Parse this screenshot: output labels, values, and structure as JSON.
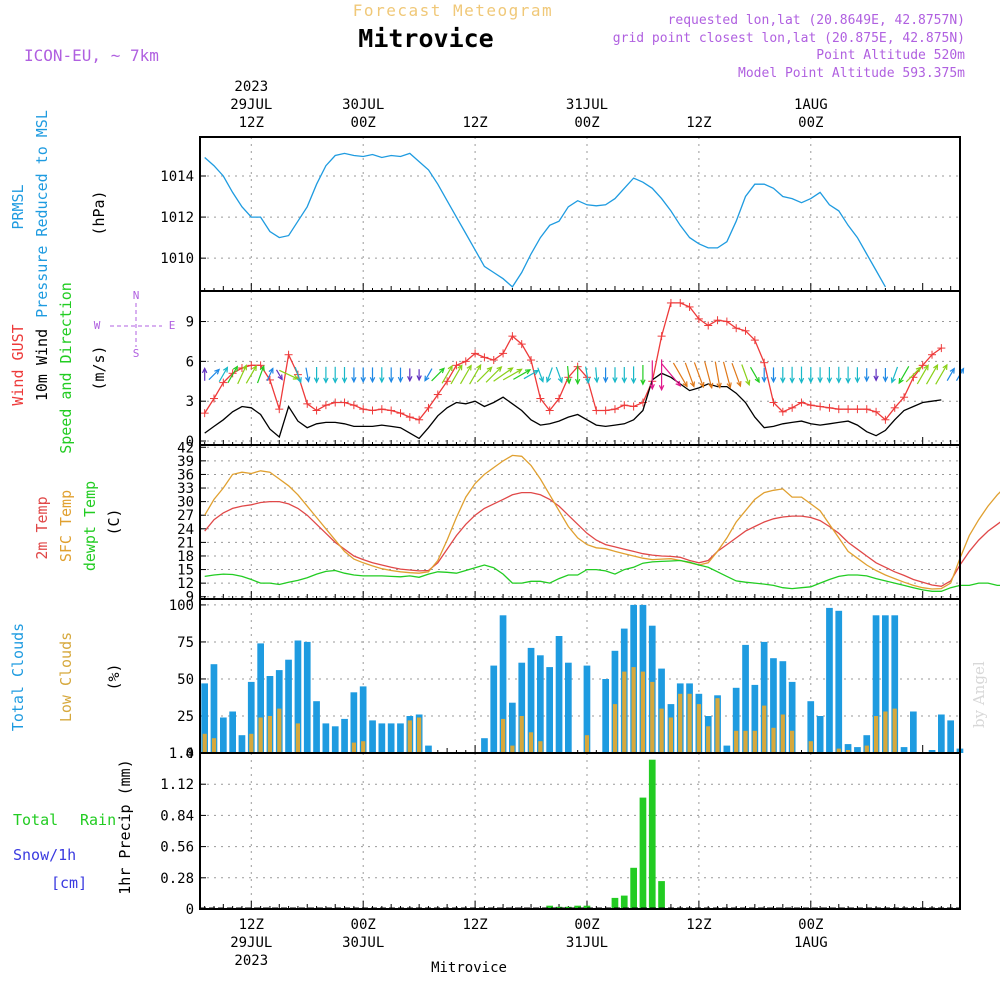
{
  "header": {
    "top_title": "Forecast Meteogram",
    "location": "Mitrovice",
    "model": "ICON-EU, ~ 7km",
    "requested": "requested lon,lat (20.8649E, 42.8757N)",
    "grid_point": "grid point closest lon,lat (20.875E, 42.875N)",
    "point_altitude": "Point Altitude 520m",
    "model_altitude": "Model Point Altitude 593.375m",
    "credit": "by Angel",
    "bottom_location": "Mitrovice"
  },
  "colors": {
    "pressure": "#1e9be0",
    "gust": "#ee3a3a",
    "wind": "#000000",
    "temp": "#e04848",
    "sfc": "#e0a030",
    "dewpt": "#22cc22",
    "total_cloud": "#1e9be0",
    "low_cloud": "#d6a83c",
    "rain": "#22cc22",
    "snow": "#3a3ae0",
    "meta": "#b060e0",
    "title_faded": "#f0c878"
  },
  "time_axis": {
    "top": [
      {
        "t": 12,
        "lines": [
          "2023",
          "29JUL",
          "12Z"
        ]
      },
      {
        "t": 24,
        "lines": [
          "30JUL",
          "00Z"
        ]
      },
      {
        "t": 36,
        "lines": [
          "12Z"
        ]
      },
      {
        "t": 48,
        "lines": [
          "31JUL",
          "00Z"
        ]
      },
      {
        "t": 60,
        "lines": [
          "12Z"
        ]
      },
      {
        "t": 72,
        "lines": [
          "1AUG",
          "00Z"
        ]
      }
    ],
    "bottom": [
      {
        "t": 12,
        "lines": [
          "12Z",
          "29JUL",
          "2023"
        ]
      },
      {
        "t": 24,
        "lines": [
          "00Z",
          "30JUL"
        ]
      },
      {
        "t": 36,
        "lines": [
          "12Z"
        ]
      },
      {
        "t": 48,
        "lines": [
          "00Z",
          "31JUL"
        ]
      },
      {
        "t": 60,
        "lines": [
          "12Z"
        ]
      },
      {
        "t": 72,
        "lines": [
          "00Z",
          "1AUG"
        ]
      }
    ]
  },
  "panels": {
    "pressure": {
      "labels": [
        "PRMSL",
        "Pressure Reduced to MSL"
      ],
      "unit": "(hPa)"
    },
    "wind": {
      "labels": [
        "Wind GUST",
        "10m Wind",
        "Speed and Direction"
      ],
      "unit": "(m/s)",
      "compass": {
        "n": "N",
        "s": "S",
        "w": "W",
        "e": "E"
      }
    },
    "temp": {
      "labels": [
        "2m Temp",
        "SFC Temp",
        "dewpt Temp"
      ],
      "unit": "(C)"
    },
    "cloud": {
      "labels": [
        "Total Clouds",
        "Low Clouds"
      ],
      "unit": "(%)"
    },
    "precip": {
      "labels": [
        "Total",
        "Rain",
        "Snow/1h",
        "[cm]"
      ],
      "unit": "1hr Precip (mm)"
    }
  },
  "chart_data": [
    {
      "type": "line",
      "name": "pressure",
      "t_start": 7,
      "t_step": 1,
      "ylim": [
        1008.4,
        1015.9
      ],
      "yticks": [
        1010,
        1012,
        1014
      ],
      "series": [
        {
          "name": "PRMSL",
          "values": [
            1014.9,
            1014.5,
            1014.0,
            1013.2,
            1012.5,
            1012.0,
            1012.0,
            1011.3,
            1011.0,
            1011.1,
            1011.8,
            1012.5,
            1013.6,
            1014.5,
            1015.0,
            1015.1,
            1015.0,
            1014.95,
            1015.05,
            1014.9,
            1015.0,
            1014.95,
            1015.1,
            1014.7,
            1014.3,
            1013.6,
            1012.8,
            1012.0,
            1011.2,
            1010.4,
            1009.6,
            1009.3,
            1009.0,
            1008.6,
            1009.3,
            1010.2,
            1011.0,
            1011.6,
            1011.8,
            1012.5,
            1012.8,
            1012.6,
            1012.55,
            1012.6,
            1012.9,
            1013.4,
            1013.9,
            1013.7,
            1013.4,
            1012.9,
            1012.3,
            1011.6,
            1011.0,
            1010.7,
            1010.5,
            1010.5,
            1010.8,
            1011.8,
            1013.0,
            1013.6,
            1013.6,
            1013.4,
            1013.0,
            1012.9,
            1012.7,
            1012.9,
            1013.2,
            1012.6,
            1012.3,
            1011.6,
            1011.0,
            1010.2,
            1009.4,
            1008.6
          ]
        }
      ]
    },
    {
      "type": "line",
      "name": "wind",
      "t_start": 7,
      "t_step": 1,
      "ylim": [
        -0.3,
        11.3
      ],
      "yticks": [
        0,
        3,
        6,
        9
      ],
      "series": [
        {
          "name": "Wind GUST",
          "values": [
            2.1,
            3.2,
            4.4,
            5.1,
            5.5,
            5.7,
            5.7,
            4.6,
            2.4,
            6.5,
            5.0,
            2.8,
            2.3,
            2.7,
            2.9,
            2.9,
            2.7,
            2.4,
            2.3,
            2.4,
            2.3,
            2.1,
            1.8,
            1.6,
            2.5,
            3.5,
            4.5,
            5.7,
            6.0,
            6.6,
            6.3,
            6.1,
            6.6,
            7.9,
            7.3,
            6.1,
            3.2,
            2.3,
            3.2,
            4.8,
            5.6,
            4.8,
            2.3,
            2.3,
            2.4,
            2.7,
            2.6,
            2.9,
            4.5,
            7.9,
            10.4,
            10.4,
            10.1,
            9.2,
            8.7,
            9.1,
            9.0,
            8.5,
            8.3,
            7.6,
            5.9,
            2.9,
            2.2,
            2.5,
            2.9,
            2.7,
            2.6,
            2.5,
            2.4,
            2.4,
            2.4,
            2.4,
            2.2,
            1.6,
            2.5,
            3.3,
            4.8,
            5.7,
            6.5,
            7.0
          ]
        },
        {
          "name": "10m Wind",
          "values": [
            0.6,
            1.1,
            1.6,
            2.2,
            2.6,
            2.5,
            2.0,
            0.9,
            0.3,
            2.6,
            1.5,
            1.0,
            1.3,
            1.4,
            1.4,
            1.3,
            1.1,
            1.1,
            1.1,
            1.2,
            1.1,
            1.0,
            0.6,
            0.2,
            1.0,
            1.9,
            2.5,
            2.9,
            2.8,
            3.0,
            2.6,
            2.9,
            3.3,
            2.8,
            2.3,
            1.6,
            1.2,
            1.3,
            1.5,
            1.8,
            2.0,
            1.6,
            1.2,
            1.1,
            1.2,
            1.3,
            1.6,
            2.3,
            4.6,
            5.1,
            4.8,
            4.3,
            3.8,
            4.0,
            4.3,
            4.1,
            4.1,
            3.6,
            2.9,
            1.8,
            1.0,
            1.1,
            1.3,
            1.4,
            1.5,
            1.3,
            1.2,
            1.3,
            1.4,
            1.5,
            1.2,
            0.7,
            0.4,
            0.8,
            1.6,
            2.3,
            2.6,
            2.9,
            3.0,
            3.1
          ]
        }
      ]
    },
    {
      "type": "line",
      "name": "temperature",
      "t_start": 7,
      "t_step": 1,
      "ylim": [
        8.5,
        42.5
      ],
      "yticks": [
        9,
        12,
        15,
        18,
        21,
        24,
        27,
        30,
        33,
        36,
        39,
        42
      ],
      "series": [
        {
          "name": "2m Temp",
          "values": [
            23.5,
            26.0,
            27.5,
            28.5,
            29.0,
            29.3,
            29.8,
            30.0,
            30.0,
            29.5,
            28.5,
            27.0,
            25.0,
            23.0,
            21.0,
            19.5,
            18.0,
            17.2,
            16.5,
            16.0,
            15.5,
            15.1,
            14.9,
            14.7,
            14.8,
            16.5,
            19.5,
            22.5,
            25.0,
            27.0,
            28.5,
            29.5,
            30.5,
            31.5,
            32.0,
            32.0,
            31.5,
            30.5,
            29.0,
            27.0,
            25.0,
            23.0,
            21.5,
            20.5,
            20.0,
            19.5,
            19.0,
            18.5,
            18.2,
            18.0,
            17.9,
            17.7,
            17.0,
            16.5,
            17.0,
            19.0,
            20.5,
            22.0,
            23.5,
            24.5,
            25.5,
            26.2,
            26.6,
            26.8,
            26.8,
            26.5,
            25.8,
            24.5,
            23.0,
            21.0,
            19.5,
            18.0,
            16.5,
            15.5,
            14.5,
            13.7,
            12.8,
            12.2,
            11.6,
            11.3,
            12.5,
            16.0,
            19.0,
            21.5,
            23.5,
            25.0,
            26.5,
            27.5
          ]
        },
        {
          "name": "SFC Temp",
          "values": [
            27.0,
            30.5,
            33.0,
            36.0,
            36.5,
            36.2,
            36.8,
            36.5,
            35.0,
            33.5,
            31.5,
            29.0,
            26.5,
            24.0,
            21.5,
            19.0,
            17.3,
            16.5,
            15.8,
            15.2,
            14.8,
            14.5,
            14.3,
            14.2,
            14.5,
            17.0,
            21.5,
            26.5,
            31.0,
            34.0,
            36.0,
            37.5,
            39.0,
            40.2,
            40.0,
            38.0,
            35.0,
            31.5,
            28.0,
            24.5,
            22.0,
            20.5,
            19.8,
            19.6,
            19.0,
            18.5,
            18.0,
            17.5,
            17.2,
            17.3,
            17.4,
            17.0,
            16.5,
            16.0,
            16.5,
            19.0,
            22.0,
            25.5,
            28.0,
            30.5,
            32.0,
            32.5,
            32.8,
            31.0,
            31.0,
            29.5,
            28.0,
            25.0,
            22.0,
            19.0,
            17.5,
            16.0,
            14.8,
            13.8,
            13.0,
            12.2,
            11.5,
            11.0,
            10.7,
            10.8,
            12.0,
            17.5,
            22.5,
            26.0,
            29.0,
            31.5,
            33.5,
            35.5
          ]
        },
        {
          "name": "dewpt Temp",
          "values": [
            13.5,
            13.8,
            14.0,
            13.9,
            13.5,
            12.8,
            12.0,
            12.0,
            11.7,
            12.2,
            12.6,
            13.2,
            14.0,
            14.6,
            14.8,
            14.2,
            13.8,
            13.6,
            13.6,
            13.6,
            13.5,
            13.4,
            13.6,
            13.3,
            14.0,
            14.5,
            14.4,
            14.2,
            14.8,
            15.4,
            16.0,
            15.4,
            14.0,
            12.0,
            12.0,
            12.4,
            12.4,
            12.0,
            13.0,
            13.8,
            13.8,
            15.0,
            15.0,
            14.7,
            14.0,
            15.0,
            15.5,
            16.4,
            16.7,
            16.8,
            16.9,
            17.0,
            16.6,
            16.0,
            15.5,
            14.5,
            13.5,
            12.5,
            12.2,
            12.0,
            11.8,
            11.5,
            11.0,
            10.8,
            11.0,
            11.2,
            12.0,
            12.8,
            13.5,
            13.8,
            13.8,
            13.6,
            13.0,
            12.5,
            12.0,
            11.5,
            11.0,
            10.5,
            10.2,
            10.2,
            11.0,
            11.5,
            11.5,
            12.0,
            12.0,
            11.5,
            11.5,
            11.5
          ]
        }
      ]
    },
    {
      "type": "bar",
      "name": "clouds",
      "t_start": 7,
      "t_step": 1,
      "ylim": [
        0,
        104
      ],
      "yticks": [
        0,
        25,
        50,
        75,
        100
      ],
      "series": [
        {
          "name": "Total Clouds",
          "values": [
            47,
            60,
            24,
            28,
            12,
            48,
            74,
            52,
            56,
            63,
            76,
            75,
            35,
            20,
            18,
            23,
            41,
            45,
            22,
            20,
            20,
            20,
            25,
            26,
            5,
            0,
            0,
            0,
            0,
            0,
            10,
            59,
            93,
            34,
            61,
            71,
            66,
            58,
            79,
            61,
            0,
            59,
            0,
            50,
            69,
            84,
            100,
            100,
            86,
            57,
            33,
            47,
            47,
            40,
            25,
            39,
            5,
            44,
            73,
            46,
            75,
            64,
            62,
            48,
            0,
            35,
            25,
            98,
            96,
            6,
            4,
            12,
            93,
            93,
            93,
            4,
            28,
            0,
            2,
            26,
            22,
            3
          ]
        },
        {
          "name": "Low Clouds",
          "values": [
            13,
            10,
            0,
            0,
            0,
            13,
            24,
            25,
            30,
            0,
            20,
            0,
            0,
            0,
            0,
            0,
            7,
            8,
            0,
            0,
            0,
            0,
            22,
            24,
            0,
            0,
            0,
            0,
            0,
            0,
            0,
            0,
            23,
            5,
            25,
            14,
            8,
            0,
            0,
            0,
            0,
            12,
            0,
            0,
            33,
            55,
            58,
            55,
            48,
            30,
            24,
            40,
            40,
            33,
            18,
            37,
            0,
            15,
            15,
            15,
            32,
            17,
            26,
            15,
            0,
            8,
            0,
            0,
            3,
            2,
            0,
            5,
            25,
            28,
            30,
            0,
            0,
            0,
            0,
            0,
            0,
            0
          ]
        }
      ]
    },
    {
      "type": "bar",
      "name": "precipitation",
      "t_start": 7,
      "t_step": 1,
      "ylim": [
        0,
        1.4
      ],
      "yticks": [
        0,
        0.28,
        0.56,
        0.84,
        1.12,
        1.4
      ],
      "yticklabels": [
        "0",
        "0.28",
        "0.56",
        "0.84",
        "1.12",
        "1.4"
      ],
      "series": [
        {
          "name": "Total Rain",
          "values": [
            0,
            0,
            0,
            0,
            0,
            0,
            0,
            0,
            0,
            0,
            0,
            0,
            0,
            0,
            0,
            0,
            0,
            0,
            0,
            0,
            0,
            0,
            0,
            0,
            0,
            0,
            0,
            0,
            0,
            0,
            0,
            0,
            0,
            0,
            0,
            0,
            0,
            0.03,
            0.02,
            0.02,
            0.03,
            0.03,
            0,
            0,
            0.1,
            0.12,
            0.37,
            1.0,
            1.34,
            0.25,
            0,
            0,
            0,
            0,
            0,
            0,
            0,
            0,
            0,
            0,
            0,
            0,
            0,
            0,
            0,
            0,
            0,
            0,
            0,
            0,
            0,
            0,
            0,
            0,
            0,
            0,
            0,
            0,
            0,
            0,
            0,
            0
          ]
        }
      ]
    },
    {
      "type": "wind_barbs",
      "name": "wind direction arrows",
      "note": "direction in degrees the wind blows toward (0=N, 90=E, 180=S), speed in m/s",
      "t_start": 7,
      "t_step": 1,
      "directions": [
        0,
        45,
        30,
        30,
        25,
        30,
        20,
        25,
        150,
        115,
        160,
        170,
        180,
        180,
        180,
        180,
        180,
        180,
        180,
        180,
        180,
        180,
        180,
        180,
        210,
        45,
        30,
        30,
        30,
        30,
        45,
        45,
        55,
        60,
        60,
        60,
        160,
        200,
        160,
        175,
        180,
        170,
        175,
        180,
        180,
        180,
        180,
        180,
        180,
        180,
        140,
        150,
        160,
        160,
        165,
        170,
        165,
        160,
        160,
        150,
        180,
        180,
        180,
        180,
        180,
        180,
        180,
        180,
        180,
        180,
        180,
        180,
        180,
        180,
        200,
        210,
        45,
        30,
        30,
        30,
        30,
        30
      ]
    }
  ]
}
